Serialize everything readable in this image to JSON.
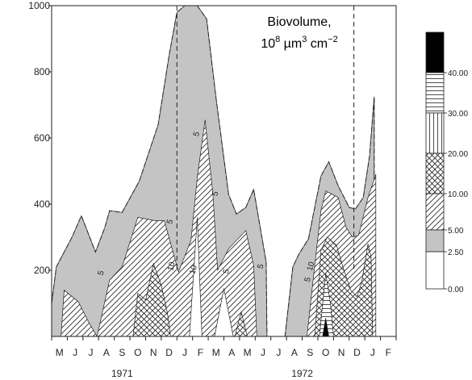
{
  "chart_data": {
    "type": "area",
    "title_line1": "Biovolume,",
    "title_line2_parts": [
      "10",
      "8",
      " µm",
      "3",
      " cm",
      "−2"
    ],
    "ylim": [
      0,
      1000
    ],
    "yticks": [
      "1000",
      "800",
      "600",
      "400",
      "200"
    ],
    "ytick_values": [
      1000,
      800,
      600,
      400,
      200
    ],
    "months": [
      "M",
      "J",
      "J",
      "A",
      "S",
      "O",
      "N",
      "D",
      "J",
      "F",
      "M",
      "A",
      "M",
      "J",
      "J",
      "A",
      "S",
      "O",
      "N",
      "D",
      "J",
      "F"
    ],
    "years": [
      {
        "label": "1971",
        "month_center": 4.0
      },
      {
        "label": "1972",
        "month_center": 15.5
      }
    ],
    "dashed_verticals": [
      8.0,
      19.3
    ],
    "series": [
      {
        "fill": "gray",
        "top": [
          [
            0,
            100
          ],
          [
            0.3,
            210
          ],
          [
            1.3,
            300
          ],
          [
            1.9,
            365
          ],
          [
            2.8,
            255
          ],
          [
            3.4,
            330
          ],
          [
            3.7,
            380
          ],
          [
            4.5,
            375
          ],
          [
            5.6,
            470
          ],
          [
            6.8,
            640
          ],
          [
            7.5,
            850
          ],
          [
            8.0,
            980
          ],
          [
            8.5,
            1000
          ],
          [
            9.3,
            1000
          ],
          [
            9.9,
            960
          ],
          [
            10.5,
            720
          ],
          [
            11.3,
            430
          ],
          [
            11.8,
            370
          ],
          [
            12.4,
            390
          ],
          [
            12.9,
            445
          ],
          [
            13.7,
            225
          ],
          [
            13.75,
            0
          ]
        ],
        "bottom": [
          [
            0,
            0
          ],
          [
            13.75,
            0
          ]
        ]
      },
      {
        "fill": "gray",
        "top": [
          [
            14.9,
            0
          ],
          [
            15.4,
            210
          ],
          [
            15.8,
            250
          ],
          [
            16.4,
            295
          ],
          [
            17.2,
            485
          ],
          [
            17.7,
            528
          ],
          [
            18.3,
            455
          ],
          [
            19.0,
            390
          ],
          [
            19.4,
            385
          ],
          [
            19.9,
            420
          ],
          [
            20.3,
            545
          ],
          [
            20.6,
            725
          ],
          [
            20.6,
            0
          ]
        ],
        "bottom": [
          [
            14.9,
            0
          ],
          [
            20.6,
            0
          ]
        ]
      },
      {
        "fill": "hatch_diag",
        "top": [
          [
            0.6,
            0
          ],
          [
            0.8,
            140
          ],
          [
            1.7,
            105
          ],
          [
            2.4,
            40
          ],
          [
            2.9,
            0
          ],
          [
            3.7,
            170
          ],
          [
            4.5,
            210
          ],
          [
            5.5,
            360
          ],
          [
            6.6,
            350
          ],
          [
            7.2,
            350
          ],
          [
            8.1,
            195
          ],
          [
            8.9,
            290
          ],
          [
            9.3,
            480
          ],
          [
            9.8,
            655
          ],
          [
            10.3,
            430
          ],
          [
            10.6,
            200
          ],
          [
            11.3,
            265
          ],
          [
            12.4,
            320
          ],
          [
            12.9,
            215
          ],
          [
            13.1,
            0
          ]
        ],
        "bottom": [
          [
            0.6,
            0
          ],
          [
            13.1,
            0
          ]
        ]
      },
      {
        "fill": "hatch_diag",
        "top": [
          [
            16.3,
            0
          ],
          [
            16.8,
            215
          ],
          [
            17.2,
            380
          ],
          [
            17.5,
            440
          ],
          [
            18.3,
            420
          ],
          [
            18.8,
            330
          ],
          [
            19.2,
            300
          ],
          [
            19.6,
            305
          ],
          [
            20.2,
            420
          ],
          [
            20.7,
            490
          ],
          [
            20.7,
            0
          ]
        ],
        "bottom": [
          [
            16.3,
            0
          ],
          [
            20.7,
            0
          ]
        ]
      },
      {
        "fill": "hatch_cross",
        "top": [
          [
            5.2,
            0
          ],
          [
            5.5,
            130
          ],
          [
            6.0,
            110
          ],
          [
            6.5,
            220
          ],
          [
            7.0,
            155
          ],
          [
            7.4,
            70
          ],
          [
            7.6,
            0
          ]
        ],
        "bottom": [
          [
            5.2,
            0
          ],
          [
            7.6,
            0
          ]
        ]
      },
      {
        "fill": "hatch_cross",
        "top": [
          [
            16.8,
            0
          ],
          [
            17.2,
            260
          ],
          [
            17.6,
            300
          ],
          [
            18.2,
            275
          ],
          [
            18.6,
            210
          ],
          [
            19.1,
            140
          ],
          [
            19.5,
            120
          ],
          [
            19.8,
            165
          ],
          [
            20.2,
            280
          ],
          [
            20.4,
            240
          ],
          [
            20.5,
            0
          ]
        ],
        "bottom": [
          [
            16.8,
            0
          ],
          [
            20.5,
            0
          ]
        ]
      },
      {
        "fill": "hatch_cross",
        "top": [
          [
            11.7,
            0
          ],
          [
            12.1,
            75
          ],
          [
            12.5,
            0
          ]
        ],
        "bottom": [
          [
            11.7,
            0
          ],
          [
            12.5,
            0
          ]
        ]
      },
      {
        "fill": "white",
        "top": [
          [
            8.8,
            0
          ],
          [
            9.3,
            360
          ],
          [
            9.6,
            0
          ]
        ],
        "bottom": [
          [
            8.8,
            0
          ],
          [
            9.6,
            0
          ]
        ]
      },
      {
        "fill": "white",
        "top": [
          [
            10.4,
            0
          ],
          [
            11.0,
            145
          ],
          [
            11.6,
            0
          ]
        ],
        "bottom": [
          [
            10.4,
            0
          ],
          [
            11.6,
            0
          ]
        ]
      },
      {
        "fill": "hatch_horiz",
        "top": [
          [
            17.1,
            0
          ],
          [
            17.5,
            190
          ],
          [
            17.8,
            100
          ],
          [
            18.0,
            0
          ]
        ],
        "bottom": [
          [
            17.1,
            0
          ],
          [
            18.0,
            0
          ]
        ]
      },
      {
        "fill": "black",
        "top": [
          [
            17.3,
            0
          ],
          [
            17.5,
            55
          ],
          [
            17.7,
            0
          ]
        ],
        "bottom": [
          [
            17.3,
            0
          ],
          [
            17.7,
            0
          ]
        ]
      }
    ],
    "contour_labels": [
      {
        "text": "5",
        "x": 3.3,
        "y": 190
      },
      {
        "text": "5",
        "x": 7.7,
        "y": 345
      },
      {
        "text": "10",
        "x": 7.8,
        "y": 210
      },
      {
        "text": "5",
        "x": 9.4,
        "y": 610
      },
      {
        "text": "10",
        "x": 9.2,
        "y": 200
      },
      {
        "text": "5",
        "x": 10.6,
        "y": 430
      },
      {
        "text": "5",
        "x": 11.3,
        "y": 195
      },
      {
        "text": "5",
        "x": 13.5,
        "y": 210
      },
      {
        "text": "5",
        "x": 16.5,
        "y": 170
      },
      {
        "text": "10",
        "x": 16.7,
        "y": 210
      }
    ],
    "legend": {
      "placement": "right",
      "entries": [
        {
          "label": "",
          "fill": "black"
        },
        {
          "label": "40.00",
          "fill": "hatch_horiz"
        },
        {
          "label": "30.00",
          "fill": "hatch_vert"
        },
        {
          "label": "20.00",
          "fill": "hatch_cross"
        },
        {
          "label": "10.00",
          "fill": "hatch_diag"
        },
        {
          "label": "5.00",
          "fill": "gray"
        },
        {
          "label": "2.50",
          "fill": "white"
        },
        {
          "label": "0.00",
          "fill": "none"
        }
      ]
    },
    "colors": {
      "gray": "#c4c4c4",
      "black": "#000000",
      "white": "#ffffff",
      "stroke": "#222222"
    }
  }
}
